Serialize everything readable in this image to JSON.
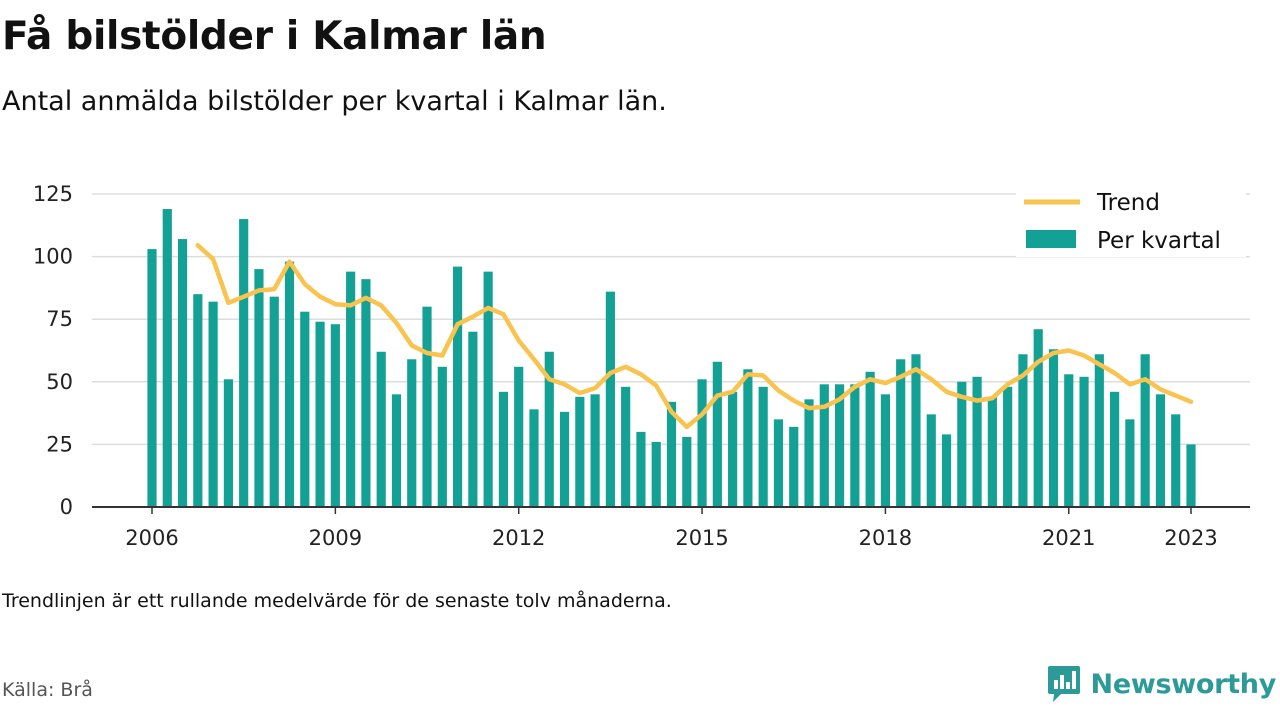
{
  "title": "Få bilstölder i Kalmar län",
  "subtitle": "Antal anmälda bilstölder per kvartal i Kalmar län.",
  "note": "Trendlinjen är ett rullande medelvärde för de senaste tolv månaderna.",
  "source": "Källa: Brå",
  "brand": {
    "name": "Newsworthy",
    "icon": "newsworthy-logo-icon",
    "color": "#2c9a99"
  },
  "chart_data": {
    "type": "bar",
    "x_start": 2006.0,
    "x_step": 0.25,
    "xticks": [
      2006,
      2009,
      2012,
      2015,
      2018,
      2021,
      2023
    ],
    "yticks": [
      0,
      25,
      50,
      75,
      100,
      125
    ],
    "ylim": [
      0,
      125
    ],
    "grid": true,
    "legend_position": "top-right",
    "series": [
      {
        "name": "Per kvartal",
        "type": "bar",
        "color": "#13a195",
        "values": [
          103,
          119,
          107,
          85,
          82,
          51,
          115,
          95,
          84,
          98,
          78,
          74,
          73,
          94,
          91,
          62,
          45,
          59,
          80,
          56,
          96,
          70,
          94,
          46,
          56,
          39,
          62,
          38,
          44,
          45,
          86,
          48,
          30,
          26,
          42,
          28,
          51,
          58,
          46,
          55,
          48,
          35,
          32,
          43,
          49,
          49,
          49,
          54,
          45,
          59,
          61,
          37,
          29,
          50,
          52,
          44,
          48,
          61,
          71,
          63,
          53,
          52,
          61,
          46,
          35,
          61,
          45,
          37,
          25
        ]
      },
      {
        "name": "Trend",
        "type": "line",
        "color": "#f8c34e",
        "x_start": 2006.75,
        "values": [
          104.5,
          99,
          81.5,
          84,
          86.5,
          87,
          98,
          89,
          84,
          81,
          80.5,
          83.5,
          80.5,
          73.5,
          64.5,
          61.5,
          60.5,
          73,
          76,
          79.5,
          77,
          66.5,
          59,
          51,
          49,
          45.5,
          47.5,
          53.5,
          56,
          53,
          48.5,
          38,
          32,
          37,
          44.5,
          46,
          53,
          52.5,
          46.5,
          42.5,
          39.5,
          40,
          43,
          48,
          51,
          49.5,
          52,
          55,
          51,
          46,
          44,
          42.5,
          43.5,
          49,
          52.5,
          58,
          61.5,
          62.5,
          60.5,
          57,
          53.5,
          49,
          51,
          47,
          44.5,
          42
        ]
      }
    ]
  }
}
